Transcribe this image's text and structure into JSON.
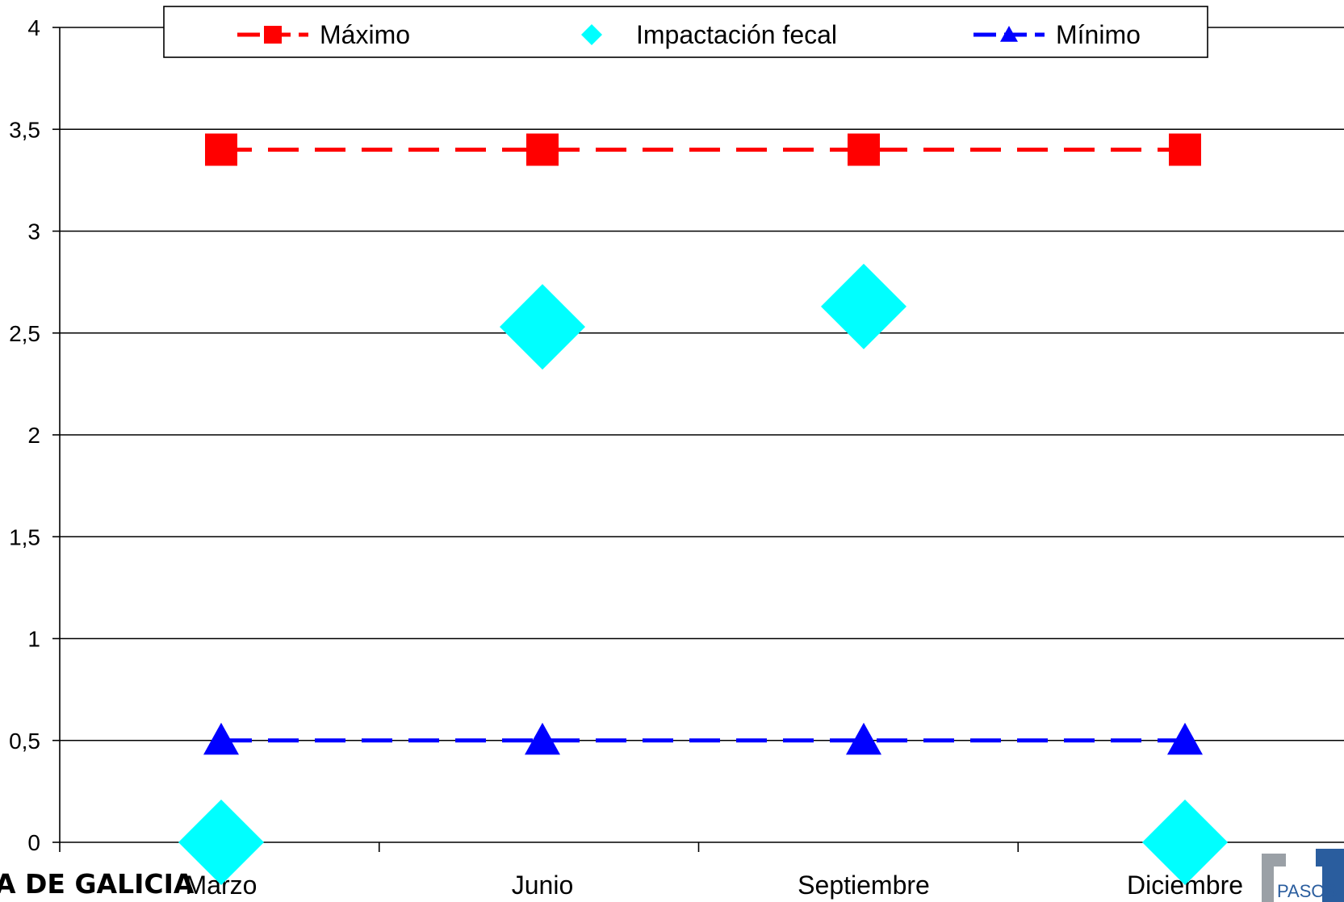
{
  "chart_data": {
    "type": "line",
    "title": "",
    "xlabel": "",
    "ylabel": "",
    "categories": [
      "Marzo",
      "Junio",
      "Septiembre",
      "Diciembre"
    ],
    "ylim": [
      0,
      4
    ],
    "yticks": [
      "0",
      "0,5",
      "1",
      "1,5",
      "2",
      "2,5",
      "3",
      "3,5",
      "4"
    ],
    "grid": true,
    "legend_position": "top",
    "series": [
      {
        "name": "Máximo",
        "values": [
          3.4,
          3.4,
          3.4,
          3.4
        ],
        "color": "#ff0000",
        "marker": "square",
        "line": "dashed"
      },
      {
        "name": "Impactación fecal",
        "values": [
          0,
          2.53,
          2.63,
          0
        ],
        "color": "#00ffff",
        "marker": "diamond",
        "line": "none"
      },
      {
        "name": "Mínimo",
        "values": [
          0.5,
          0.5,
          0.5,
          0.5
        ],
        "color": "#0000ff",
        "marker": "triangle",
        "line": "dashed"
      }
    ]
  },
  "logos": {
    "left_text": "A DE GALICIA",
    "right_text": "PASOS"
  }
}
